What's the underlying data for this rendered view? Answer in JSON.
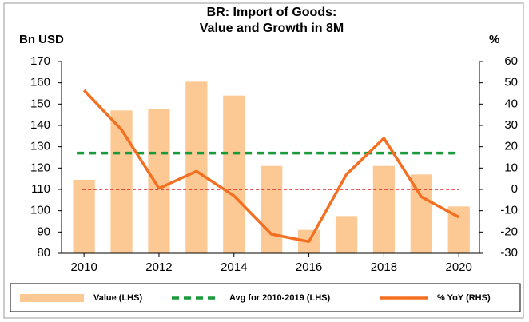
{
  "chart_data": {
    "type": "bar_line",
    "title_lines": [
      "BR: Import of Goods:",
      "Value and Growth in 8M"
    ],
    "y_label": "Bn USD",
    "y2_label": "%",
    "x": [
      2010,
      2011,
      2012,
      2013,
      2014,
      2015,
      2016,
      2017,
      2018,
      2019,
      2020
    ],
    "xlim": [
      2009.4,
      2020.55
    ],
    "xticks": [
      2010,
      2012,
      2014,
      2016,
      2018,
      2020
    ],
    "ylim": [
      80,
      170
    ],
    "yticks": [
      80,
      90,
      100,
      110,
      120,
      130,
      140,
      150,
      160,
      170
    ],
    "y2lim": [
      -30,
      60
    ],
    "y2ticks": [
      -30,
      -20,
      -10,
      0,
      10,
      20,
      30,
      40,
      50,
      60
    ],
    "series": [
      {
        "name": "Value (LHS)",
        "kind": "bar",
        "color": "#fcc995",
        "values": [
          114.5,
          147,
          147.5,
          160.5,
          154,
          121,
          91,
          97.5,
          121,
          117,
          102
        ]
      },
      {
        "name": "Avg for 2010-2019 (LHS)",
        "kind": "hline",
        "color": "#1a9a3a",
        "value": 127
      },
      {
        "name": "% YoY (RHS)",
        "kind": "line",
        "axis": "y2",
        "color": "#f36f21",
        "values": [
          46.5,
          28,
          0.5,
          8.5,
          -3,
          -21,
          -24.5,
          7,
          24,
          -3.5,
          -13
        ]
      }
    ],
    "y2_reference_line": {
      "value": 0,
      "color": "#e02020"
    }
  }
}
